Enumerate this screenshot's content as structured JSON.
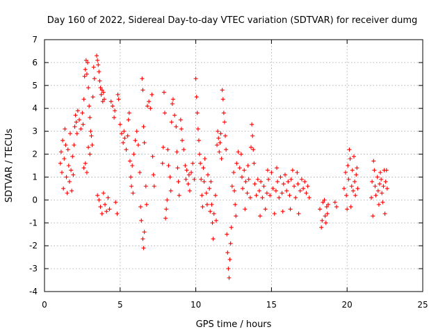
{
  "chart_data": {
    "type": "scatter",
    "title": "Day 160 of 2022, Sidereal Day-to-day VTEC variation (SDTVAR) for receiver dumg",
    "xlabel": "GPS time / hours",
    "ylabel": "SDTVAR / TECUs",
    "xlim": [
      0,
      25
    ],
    "ylim": [
      -4,
      7
    ],
    "xticks": [
      "0",
      "5",
      "10",
      "15",
      "20",
      "25"
    ],
    "yticks": [
      "-4",
      "-3",
      "-2",
      "-1",
      "0",
      "1",
      "2",
      "3",
      "4",
      "5",
      "6",
      "7"
    ],
    "grid": true,
    "marker": "plus",
    "series_color": "#ff0000",
    "series": [
      {
        "name": "SDTVAR",
        "points": [
          [
            1.05,
            1.6
          ],
          [
            1.1,
            2.1
          ],
          [
            1.15,
            1.2
          ],
          [
            1.2,
            2.6
          ],
          [
            1.25,
            0.5
          ],
          [
            1.3,
            1.8
          ],
          [
            1.35,
            3.1
          ],
          [
            1.4,
            2.4
          ],
          [
            1.45,
            1.0
          ],
          [
            1.5,
            0.3
          ],
          [
            1.55,
            2.2
          ],
          [
            1.6,
            1.5
          ],
          [
            1.65,
            0.8
          ],
          [
            1.7,
            2.9
          ],
          [
            1.75,
            1.3
          ],
          [
            1.8,
            0.4
          ],
          [
            1.85,
            1.9
          ],
          [
            1.9,
            1.1
          ],
          [
            1.95,
            2.4
          ],
          [
            2.0,
            3.2
          ],
          [
            2.05,
            3.7
          ],
          [
            2.1,
            3.4
          ],
          [
            2.15,
            2.9
          ],
          [
            2.2,
            3.9
          ],
          [
            2.3,
            3.5
          ],
          [
            2.4,
            3.1
          ],
          [
            2.5,
            3.8
          ],
          [
            2.55,
            3.3
          ],
          [
            2.6,
            4.4
          ],
          [
            2.65,
            5.4
          ],
          [
            2.7,
            5.7
          ],
          [
            2.75,
            6.1
          ],
          [
            2.8,
            5.5
          ],
          [
            2.85,
            6.0
          ],
          [
            2.9,
            4.9
          ],
          [
            2.95,
            4.1
          ],
          [
            3.0,
            3.6
          ],
          [
            3.05,
            3.0
          ],
          [
            2.6,
            1.4
          ],
          [
            2.7,
            1.6
          ],
          [
            2.8,
            1.2
          ],
          [
            2.9,
            2.3
          ],
          [
            3.0,
            2.0
          ],
          [
            3.1,
            2.8
          ],
          [
            3.15,
            2.4
          ],
          [
            3.2,
            4.5
          ],
          [
            3.25,
            5.8
          ],
          [
            3.3,
            5.3
          ],
          [
            3.45,
            6.3
          ],
          [
            3.5,
            6.1
          ],
          [
            3.55,
            5.9
          ],
          [
            3.6,
            5.6
          ],
          [
            3.65,
            5.2
          ],
          [
            3.7,
            4.9
          ],
          [
            3.75,
            4.6
          ],
          [
            3.8,
            4.8
          ],
          [
            3.85,
            4.3
          ],
          [
            3.9,
            4.7
          ],
          [
            3.95,
            4.4
          ],
          [
            3.5,
            0.2
          ],
          [
            3.6,
            0.0
          ],
          [
            3.7,
            -0.3
          ],
          [
            3.8,
            -0.6
          ],
          [
            3.9,
            0.3
          ],
          [
            4.0,
            -0.2
          ],
          [
            4.1,
            -0.5
          ],
          [
            4.2,
            0.1
          ],
          [
            4.3,
            -0.4
          ],
          [
            4.4,
            4.3
          ],
          [
            4.5,
            4.1
          ],
          [
            4.6,
            3.6
          ],
          [
            4.65,
            3.9
          ],
          [
            4.7,
            -0.1
          ],
          [
            4.8,
            -0.6
          ],
          [
            4.85,
            4.6
          ],
          [
            4.9,
            4.4
          ],
          [
            5.0,
            3.3
          ],
          [
            5.1,
            2.9
          ],
          [
            5.2,
            2.5
          ],
          [
            5.25,
            3.0
          ],
          [
            5.3,
            2.7
          ],
          [
            5.4,
            2.2
          ],
          [
            5.5,
            2.8
          ],
          [
            5.55,
            3.5
          ],
          [
            5.6,
            3.8
          ],
          [
            5.65,
            1.7
          ],
          [
            5.7,
            1.0
          ],
          [
            5.75,
            0.6
          ],
          [
            5.8,
            1.5
          ],
          [
            5.85,
            0.3
          ],
          [
            5.9,
            2.0
          ],
          [
            6.0,
            2.6
          ],
          [
            6.1,
            3.0
          ],
          [
            6.2,
            2.4
          ],
          [
            6.3,
            1.2
          ],
          [
            6.35,
            -0.3
          ],
          [
            6.4,
            -0.9
          ],
          [
            6.5,
            -1.7
          ],
          [
            6.55,
            -2.1
          ],
          [
            6.6,
            -1.4
          ],
          [
            6.45,
            5.3
          ],
          [
            6.5,
            4.8
          ],
          [
            6.55,
            3.2
          ],
          [
            6.6,
            2.5
          ],
          [
            6.7,
            0.6
          ],
          [
            6.75,
            -0.2
          ],
          [
            6.8,
            4.1
          ],
          [
            6.9,
            4.3
          ],
          [
            7.0,
            4.0
          ],
          [
            7.1,
            4.6
          ],
          [
            7.15,
            1.9
          ],
          [
            7.2,
            1.1
          ],
          [
            7.25,
            0.6
          ],
          [
            7.8,
            1.6
          ],
          [
            7.85,
            2.3
          ],
          [
            7.9,
            4.7
          ],
          [
            7.95,
            3.8
          ],
          [
            8.0,
            -0.8
          ],
          [
            8.05,
            -0.4
          ],
          [
            8.1,
            0.0
          ],
          [
            8.15,
            2.2
          ],
          [
            8.2,
            1.5
          ],
          [
            8.3,
            1.0
          ],
          [
            8.35,
            0.4
          ],
          [
            8.4,
            3.4
          ],
          [
            8.45,
            4.2
          ],
          [
            8.5,
            4.4
          ],
          [
            8.6,
            3.7
          ],
          [
            8.7,
            3.2
          ],
          [
            8.75,
            2.1
          ],
          [
            8.8,
            1.4
          ],
          [
            8.85,
            0.8
          ],
          [
            8.9,
            0.2
          ],
          [
            9.0,
            3.5
          ],
          [
            9.05,
            3.1
          ],
          [
            9.1,
            2.6
          ],
          [
            9.2,
            2.2
          ],
          [
            9.3,
            1.5
          ],
          [
            9.35,
            0.9
          ],
          [
            9.4,
            1.3
          ],
          [
            9.5,
            0.7
          ],
          [
            9.55,
            1.1
          ],
          [
            9.6,
            0.4
          ],
          [
            9.7,
            1.2
          ],
          [
            9.8,
            1.6
          ],
          [
            9.9,
            0.9
          ],
          [
            10.0,
            5.3
          ],
          [
            10.05,
            4.5
          ],
          [
            10.1,
            3.8
          ],
          [
            10.15,
            3.1
          ],
          [
            10.2,
            2.6
          ],
          [
            10.25,
            2.0
          ],
          [
            10.3,
            1.6
          ],
          [
            10.35,
            0.9
          ],
          [
            10.4,
            0.2
          ],
          [
            10.45,
            -0.3
          ],
          [
            10.5,
            1.4
          ],
          [
            10.55,
            0.8
          ],
          [
            10.6,
            1.8
          ],
          [
            10.7,
            0.3
          ],
          [
            10.75,
            -0.2
          ],
          [
            10.8,
            1.1
          ],
          [
            10.9,
            0.5
          ],
          [
            10.95,
            -0.5
          ],
          [
            11.0,
            0.8
          ],
          [
            11.05,
            -0.2
          ],
          [
            11.1,
            -1.0
          ],
          [
            11.15,
            -1.7
          ],
          [
            11.2,
            -0.6
          ],
          [
            11.3,
            0.2
          ],
          [
            11.35,
            -0.9
          ],
          [
            11.4,
            2.4
          ],
          [
            11.45,
            3.0
          ],
          [
            11.5,
            2.7
          ],
          [
            11.55,
            2.1
          ],
          [
            11.6,
            2.5
          ],
          [
            11.65,
            2.9
          ],
          [
            11.7,
            1.8
          ],
          [
            11.75,
            4.8
          ],
          [
            11.8,
            4.4
          ],
          [
            11.85,
            3.8
          ],
          [
            11.9,
            3.4
          ],
          [
            11.95,
            2.8
          ],
          [
            12.0,
            2.2
          ],
          [
            12.05,
            -1.5
          ],
          [
            12.1,
            -2.3
          ],
          [
            12.15,
            -3.0
          ],
          [
            12.2,
            -3.4
          ],
          [
            12.25,
            -2.6
          ],
          [
            12.3,
            -1.9
          ],
          [
            12.35,
            -1.2
          ],
          [
            12.4,
            0.6
          ],
          [
            12.5,
            1.2
          ],
          [
            12.55,
            0.4
          ],
          [
            12.6,
            -0.2
          ],
          [
            12.65,
            -0.7
          ],
          [
            12.7,
            1.6
          ],
          [
            12.8,
            2.1
          ],
          [
            12.9,
            1.4
          ],
          [
            13.0,
            2.0
          ],
          [
            13.05,
            1.0
          ],
          [
            13.1,
            0.5
          ],
          [
            13.2,
            1.3
          ],
          [
            13.25,
            -0.4
          ],
          [
            13.3,
            0.8
          ],
          [
            13.4,
            0.3
          ],
          [
            13.45,
            1.5
          ],
          [
            13.5,
            0.9
          ],
          [
            13.6,
            0.1
          ],
          [
            13.65,
            2.3
          ],
          [
            13.7,
            3.3
          ],
          [
            13.75,
            2.8
          ],
          [
            13.8,
            2.2
          ],
          [
            13.85,
            1.6
          ],
          [
            13.9,
            0.7
          ],
          [
            14.0,
            0.2
          ],
          [
            14.1,
            0.9
          ],
          [
            14.2,
            0.4
          ],
          [
            14.25,
            -0.7
          ],
          [
            14.3,
            0.8
          ],
          [
            14.4,
            0.1
          ],
          [
            14.5,
            0.6
          ],
          [
            14.6,
            -0.4
          ],
          [
            14.7,
            0.3
          ],
          [
            14.75,
            1.3
          ],
          [
            14.8,
            0.9
          ],
          [
            14.9,
            0.2
          ],
          [
            15.0,
            1.2
          ],
          [
            15.1,
            0.5
          ],
          [
            15.2,
            -0.6
          ],
          [
            15.3,
            0.4
          ],
          [
            15.35,
            1.4
          ],
          [
            15.4,
            0.8
          ],
          [
            15.5,
            0.1
          ],
          [
            15.6,
            1.0
          ],
          [
            15.7,
            0.3
          ],
          [
            15.75,
            -0.5
          ],
          [
            15.8,
            0.7
          ],
          [
            15.9,
            1.1
          ],
          [
            16.0,
            0.4
          ],
          [
            16.1,
            0.8
          ],
          [
            16.2,
            0.2
          ],
          [
            16.25,
            -0.4
          ],
          [
            16.3,
            0.9
          ],
          [
            16.4,
            1.3
          ],
          [
            16.5,
            0.6
          ],
          [
            16.6,
            0.1
          ],
          [
            16.7,
            1.2
          ],
          [
            16.75,
            0.7
          ],
          [
            16.8,
            -0.6
          ],
          [
            16.9,
            0.4
          ],
          [
            17.0,
            0.9
          ],
          [
            17.1,
            0.5
          ],
          [
            17.2,
            0.8
          ],
          [
            17.3,
            0.3
          ],
          [
            17.4,
            0.6
          ],
          [
            17.5,
            0.1
          ],
          [
            18.2,
            -0.4
          ],
          [
            18.3,
            -1.2
          ],
          [
            18.35,
            -0.9
          ],
          [
            18.4,
            -0.1
          ],
          [
            18.5,
            0.0
          ],
          [
            18.55,
            -0.7
          ],
          [
            18.6,
            -1.0
          ],
          [
            18.65,
            -0.3
          ],
          [
            18.7,
            -0.6
          ],
          [
            18.75,
            -0.2
          ],
          [
            19.2,
            -0.1
          ],
          [
            19.3,
            -0.3
          ],
          [
            19.8,
            0.5
          ],
          [
            19.9,
            1.2
          ],
          [
            19.95,
            0.2
          ],
          [
            20.0,
            -0.4
          ],
          [
            20.05,
            1.5
          ],
          [
            20.1,
            0.9
          ],
          [
            20.15,
            2.2
          ],
          [
            20.2,
            1.8
          ],
          [
            20.25,
            -0.3
          ],
          [
            20.3,
            0.6
          ],
          [
            20.35,
            1.3
          ],
          [
            20.4,
            0.4
          ],
          [
            20.45,
            1.9
          ],
          [
            20.5,
            0.8
          ],
          [
            20.55,
            0.2
          ],
          [
            20.6,
            1.1
          ],
          [
            20.65,
            1.4
          ],
          [
            20.7,
            0.5
          ],
          [
            21.6,
            0.1
          ],
          [
            21.65,
            0.8
          ],
          [
            21.7,
            -0.7
          ],
          [
            21.75,
            1.7
          ],
          [
            21.8,
            1.3
          ],
          [
            21.85,
            0.6
          ],
          [
            21.9,
            0.2
          ],
          [
            22.0,
            1.0
          ],
          [
            22.05,
            0.4
          ],
          [
            22.1,
            -0.2
          ],
          [
            22.15,
            0.7
          ],
          [
            22.2,
            1.2
          ],
          [
            22.25,
            0.9
          ],
          [
            22.3,
            0.3
          ],
          [
            22.35,
            -0.1
          ],
          [
            22.4,
            0.6
          ],
          [
            22.45,
            1.3
          ],
          [
            22.5,
            -0.6
          ],
          [
            22.55,
            0.8
          ],
          [
            22.6,
            1.3
          ],
          [
            22.65,
            0.5
          ]
        ]
      }
    ]
  }
}
